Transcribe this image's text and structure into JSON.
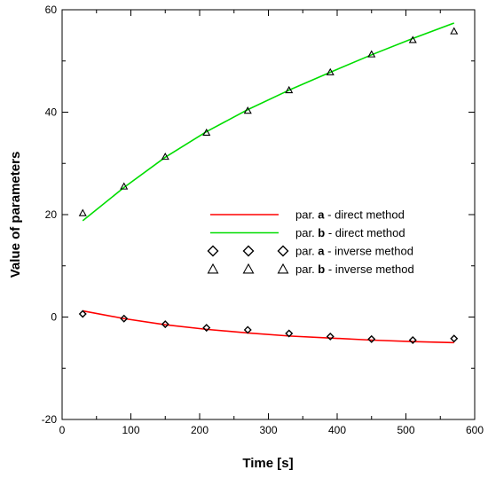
{
  "chart_data": {
    "type": "line",
    "title": "",
    "xlabel": "Time [s]",
    "ylabel": "Value of parameters",
    "xlim": [
      0,
      600
    ],
    "ylim": [
      -20,
      60
    ],
    "x_ticks": [
      0,
      100,
      200,
      300,
      400,
      500,
      600
    ],
    "y_ticks": [
      -20,
      0,
      20,
      40,
      60
    ],
    "x_tick_labels": [
      "0",
      "100",
      "200",
      "300",
      "400",
      "500",
      "600"
    ],
    "y_tick_labels": [
      "-20",
      "0",
      "20",
      "40",
      "60"
    ],
    "grid": false,
    "legend_position": "center-right",
    "series": [
      {
        "name_prefix": "par. ",
        "name_bold": "a",
        "name_suffix": " - direct method",
        "kind": "line",
        "color": "#ff0000",
        "x": [
          30,
          90,
          150,
          210,
          270,
          330,
          390,
          450,
          510,
          570
        ],
        "y": [
          1.2,
          -0.3,
          -1.5,
          -2.4,
          -3.1,
          -3.7,
          -4.1,
          -4.5,
          -4.8,
          -5.0
        ]
      },
      {
        "name_prefix": "par. ",
        "name_bold": "b",
        "name_suffix": " - direct method",
        "kind": "line",
        "color": "#00dd00",
        "x": [
          30,
          90,
          150,
          210,
          270,
          330,
          390,
          450,
          510,
          570
        ],
        "y": [
          18.8,
          25.3,
          31.2,
          36.2,
          40.5,
          44.3,
          47.8,
          51.2,
          54.4,
          57.4
        ]
      },
      {
        "name_prefix": "par. ",
        "name_bold": "a",
        "name_suffix": " - inverse method",
        "kind": "marker",
        "marker": "diamond",
        "color": "#000000",
        "x": [
          30,
          90,
          150,
          210,
          270,
          330,
          390,
          450,
          510,
          570
        ],
        "y": [
          0.6,
          -0.3,
          -1.4,
          -2.1,
          -2.5,
          -3.2,
          -3.8,
          -4.3,
          -4.5,
          -4.2
        ]
      },
      {
        "name_prefix": "par. ",
        "name_bold": "b",
        "name_suffix": " - inverse method",
        "kind": "marker",
        "marker": "triangle",
        "color": "#000000",
        "x": [
          30,
          90,
          150,
          210,
          270,
          330,
          390,
          450,
          510,
          570
        ],
        "y": [
          20.3,
          25.5,
          31.3,
          36.0,
          40.3,
          44.3,
          47.8,
          51.3,
          54.1,
          55.8
        ]
      }
    ]
  }
}
